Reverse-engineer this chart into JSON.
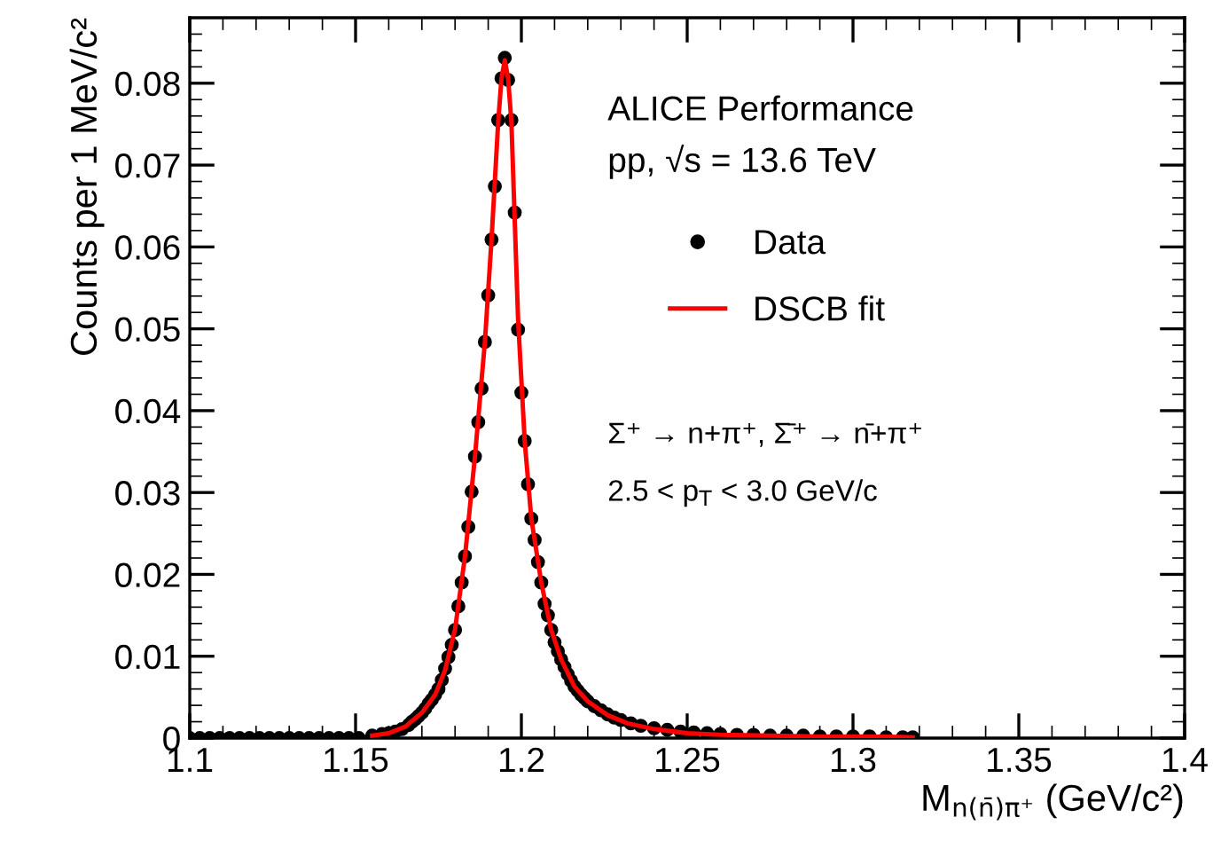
{
  "chart_data": {
    "type": "scatter",
    "xlabel": "M$_{n(n̄)π⁺}$ (GeV/c²)",
    "ylabel": "Counts per 1 MeV/c²",
    "annotations": [
      "ALICE Performance",
      "pp, √s = 13.6 TeV",
      "Σ⁺ → n+π⁺, Σ̄⁺ → n̄+π⁺",
      "2.5 < p$_{T}$ < 3.0 GeV/c"
    ],
    "xlim": [
      1.1,
      1.4
    ],
    "xticks": [
      1.1,
      1.15,
      1.2,
      1.25,
      1.3,
      1.35,
      1.4
    ],
    "ylim": [
      0,
      0.088
    ],
    "yticks": [
      0,
      0.01,
      0.02,
      0.03,
      0.04,
      0.05,
      0.06,
      0.07,
      0.08
    ],
    "grid": false,
    "legend": "top right",
    "series": [
      {
        "name": "Data",
        "marker": "circle",
        "color": "#000000",
        "x": [
          1.1,
          1.103,
          1.106,
          1.109,
          1.112,
          1.115,
          1.118,
          1.121,
          1.124,
          1.127,
          1.13,
          1.133,
          1.136,
          1.139,
          1.142,
          1.145,
          1.148,
          1.151,
          1.155,
          1.158,
          1.16,
          1.162,
          1.164,
          1.166,
          1.167,
          1.168,
          1.169,
          1.17,
          1.171,
          1.172,
          1.173,
          1.174,
          1.175,
          1.176,
          1.177,
          1.178,
          1.179,
          1.18,
          1.181,
          1.182,
          1.183,
          1.184,
          1.185,
          1.186,
          1.187,
          1.188,
          1.189,
          1.19,
          1.191,
          1.192,
          1.193,
          1.194,
          1.195,
          1.196,
          1.197,
          1.198,
          1.199,
          1.2,
          1.201,
          1.202,
          1.203,
          1.204,
          1.205,
          1.206,
          1.207,
          1.208,
          1.209,
          1.21,
          1.211,
          1.212,
          1.213,
          1.214,
          1.215,
          1.216,
          1.217,
          1.218,
          1.219,
          1.22,
          1.222,
          1.224,
          1.226,
          1.228,
          1.23,
          1.233,
          1.236,
          1.24,
          1.244,
          1.248,
          1.252,
          1.256,
          1.26,
          1.265,
          1.27,
          1.275,
          1.28,
          1.285,
          1.29,
          1.295,
          1.3,
          1.305,
          1.31,
          1.315,
          1.318
        ],
        "values": [
          0,
          0,
          0,
          0,
          0,
          0,
          0,
          0,
          0,
          0,
          0,
          0,
          0,
          0,
          0,
          0,
          0,
          0,
          0.0003,
          0.0005,
          0.0006,
          0.0008,
          0.0011,
          0.0016,
          0.002,
          0.0023,
          0.0027,
          0.0031,
          0.0036,
          0.0042,
          0.0047,
          0.0053,
          0.006,
          0.0071,
          0.0085,
          0.0099,
          0.0114,
          0.0132,
          0.0161,
          0.019,
          0.0222,
          0.0258,
          0.0301,
          0.0344,
          0.0386,
          0.0427,
          0.0484,
          0.0541,
          0.0609,
          0.0674,
          0.0755,
          0.0806,
          0.0831,
          0.0804,
          0.0755,
          0.0642,
          0.0499,
          0.0422,
          0.0363,
          0.031,
          0.0268,
          0.0242,
          0.0215,
          0.019,
          0.0164,
          0.015,
          0.0132,
          0.0117,
          0.0106,
          0.0096,
          0.0087,
          0.0078,
          0.007,
          0.0063,
          0.0058,
          0.0053,
          0.0049,
          0.0045,
          0.0039,
          0.0034,
          0.0029,
          0.0025,
          0.0022,
          0.0018,
          0.0015,
          0.0012,
          0.001,
          0.0008,
          0.0007,
          0.0006,
          0.0005,
          0.0004,
          0.0004,
          0.0003,
          0.0003,
          0.0003,
          0.0002,
          0.0002,
          0.0002,
          0.0002,
          0.0001,
          0.0001,
          0.0001
        ]
      },
      {
        "name": "DSCB fit",
        "type": "line",
        "color": "#ff0000",
        "x": [
          1.155,
          1.16,
          1.165,
          1.17,
          1.174,
          1.177,
          1.18,
          1.183,
          1.186,
          1.189,
          1.191,
          1.193,
          1.194,
          1.195,
          1.196,
          1.197,
          1.199,
          1.201,
          1.203,
          1.206,
          1.209,
          1.212,
          1.216,
          1.22,
          1.226,
          1.232,
          1.24,
          1.25,
          1.26,
          1.275,
          1.29,
          1.305,
          1.318
        ],
        "values": [
          0.0003,
          0.0006,
          0.0014,
          0.0031,
          0.0053,
          0.0083,
          0.0133,
          0.0222,
          0.0344,
          0.0484,
          0.0609,
          0.0752,
          0.0806,
          0.0828,
          0.0806,
          0.0752,
          0.0512,
          0.0363,
          0.0268,
          0.019,
          0.0132,
          0.0096,
          0.0063,
          0.0045,
          0.0028,
          0.0018,
          0.0011,
          0.0006,
          0.0004,
          0.0003,
          0.0002,
          0.0002,
          0.0001
        ]
      }
    ]
  }
}
